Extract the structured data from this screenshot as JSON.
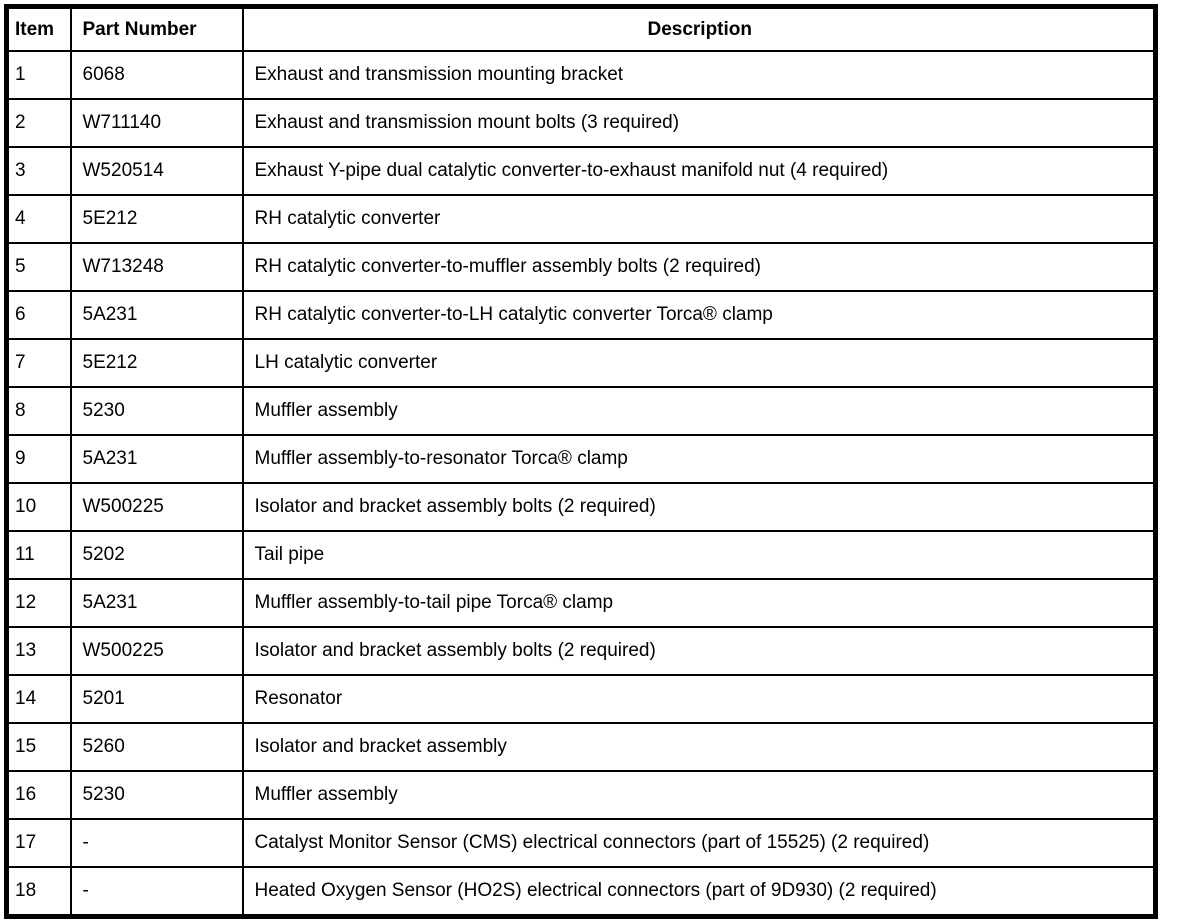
{
  "table": {
    "columns": [
      "Item",
      "Part Number",
      "Description"
    ],
    "rows": [
      [
        "1",
        "6068",
        "Exhaust and transmission mounting bracket"
      ],
      [
        "2",
        "W711140",
        "Exhaust and transmission mount bolts (3 required)"
      ],
      [
        "3",
        "W520514",
        "Exhaust Y-pipe dual catalytic converter-to-exhaust manifold nut (4 required)"
      ],
      [
        "4",
        "5E212",
        "RH catalytic converter"
      ],
      [
        "5",
        "W713248",
        "RH catalytic converter-to-muffler assembly bolts (2 required)"
      ],
      [
        "6",
        "5A231",
        "RH catalytic converter-to-LH catalytic converter Torca® clamp"
      ],
      [
        "7",
        "5E212",
        "LH catalytic converter"
      ],
      [
        "8",
        "5230",
        "Muffler assembly"
      ],
      [
        "9",
        "5A231",
        "Muffler assembly-to-resonator Torca® clamp"
      ],
      [
        "10",
        "W500225",
        "Isolator and bracket assembly bolts (2 required)"
      ],
      [
        "11",
        "5202",
        "Tail pipe"
      ],
      [
        "12",
        "5A231",
        "Muffler assembly-to-tail pipe Torca® clamp"
      ],
      [
        "13",
        "W500225",
        "Isolator and bracket assembly bolts (2 required)"
      ],
      [
        "14",
        "5201",
        "Resonator"
      ],
      [
        "15",
        "5260",
        "Isolator and bracket assembly"
      ],
      [
        "16",
        "5230",
        "Muffler assembly"
      ],
      [
        "17",
        "-",
        "Catalyst Monitor Sensor (CMS) electrical connectors (part of 15525) (2 required)"
      ],
      [
        "18",
        "-",
        "Heated Oxygen Sensor (HO2S) electrical connectors (part of 9D930) (2 required)"
      ]
    ],
    "colors": {
      "border": "#000000",
      "text": "#000000",
      "background": "#ffffff"
    }
  }
}
